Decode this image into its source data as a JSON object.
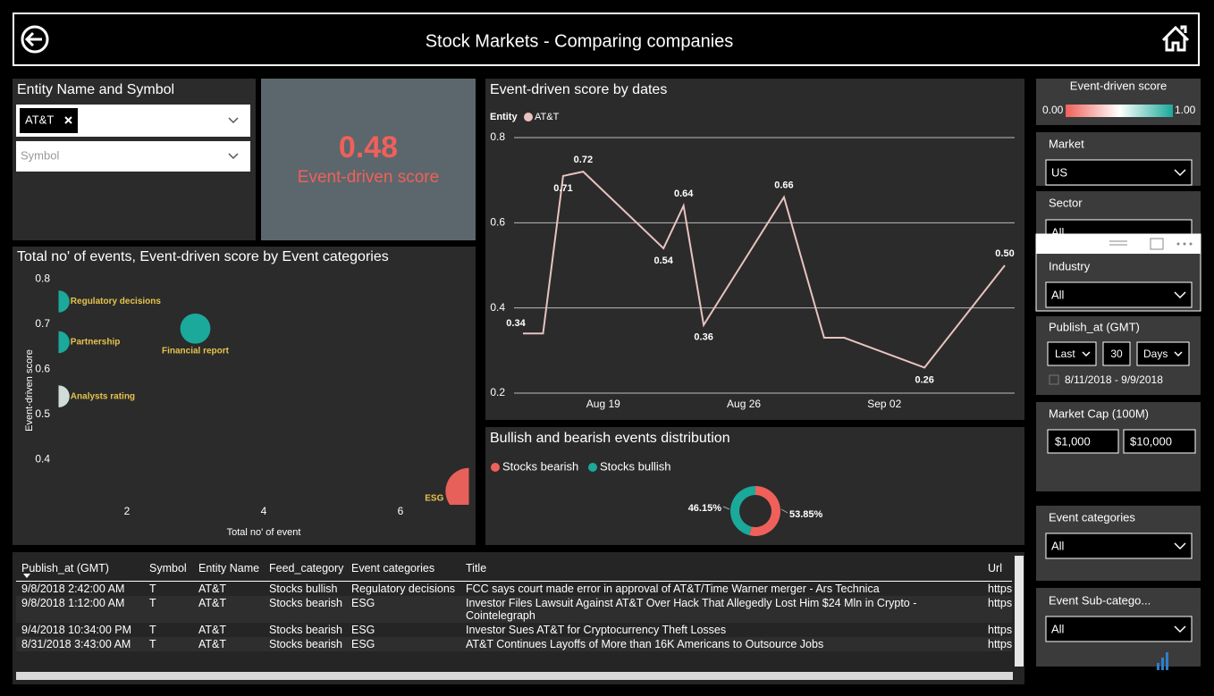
{
  "header": {
    "title": "Stock Markets - Comparing companies"
  },
  "entity_filter": {
    "title": "Entity Name and Symbol",
    "selected": "AT&T",
    "symbol_placeholder": "Symbol"
  },
  "score_card": {
    "value": "0.48",
    "label": "Event-driven score"
  },
  "chart_data": [
    {
      "type": "scatter",
      "title": "Total no' of events, Event-driven score by Event categories",
      "x_label": "Total no' of event",
      "y_label": "Event-driven score",
      "categories": [
        "Regulatory decisions",
        "Partnership",
        "Analysts rating",
        "Financial report",
        "ESG"
      ],
      "x": [
        1,
        1,
        1,
        3,
        7
      ],
      "values": [
        0.75,
        0.66,
        0.54,
        0.69,
        0.33
      ],
      "colors": [
        "#1aa99a",
        "#1aa99a",
        "#cfdcd8",
        "#1aa99a",
        "#e8605a"
      ],
      "xlim": [
        1,
        7
      ],
      "xticks": [
        2,
        4,
        6
      ],
      "ylim": [
        0.3,
        0.82
      ],
      "yticks": [
        0.4,
        0.5,
        0.6,
        0.7,
        0.8
      ]
    },
    {
      "type": "line",
      "title": "Event-driven score by dates",
      "legend_title": "Entity",
      "x": [
        "Aug 15",
        "Aug 16",
        "Aug 17",
        "Aug 18",
        "Aug 22",
        "Aug 23",
        "Aug 24",
        "Aug 28",
        "Aug 30",
        "Aug 31",
        "Sep 04",
        "Sep 08"
      ],
      "series": [
        {
          "name": "AT&T",
          "color": "#e8c3bf",
          "values": [
            0.34,
            0.34,
            0.71,
            0.72,
            0.54,
            0.64,
            0.36,
            0.66,
            0.33,
            0.33,
            0.26,
            0.5
          ],
          "value_labels": [
            "0.34",
            null,
            "0.71",
            "0.72",
            "0.54",
            "0.64",
            "0.36",
            "0.66",
            null,
            null,
            "0.26",
            "0.50"
          ]
        }
      ],
      "xlim": [
        "Aug 15",
        "Sep 08"
      ],
      "xticks": [
        "Aug 19",
        "Aug 26",
        "Sep 02"
      ],
      "ylim": [
        0.2,
        0.8
      ],
      "yticks": [
        0.2,
        0.4,
        0.6,
        0.8
      ],
      "grid": true
    },
    {
      "type": "pie",
      "title": "Bullish and bearish events distribution",
      "categories": [
        "Stocks bearish",
        "Stocks bullish"
      ],
      "values": [
        53.85,
        46.15
      ],
      "value_labels": [
        "53.85%",
        "46.15%"
      ],
      "colors": [
        "#f0605a",
        "#1aa99a"
      ]
    }
  ],
  "table": {
    "columns": [
      "Publish_at (GMT)",
      "Symbol",
      "Entity Name",
      "Feed_category",
      "Event categories",
      "Title",
      "Url"
    ],
    "rows": [
      [
        "9/8/2018 2:42:00 AM",
        "T",
        "AT&T",
        "Stocks bullish",
        "Regulatory decisions",
        "FCC says court made error in approval of AT&T/Time Warner merger - Ars Technica",
        "https"
      ],
      [
        "9/8/2018 1:12:00 AM",
        "T",
        "AT&T",
        "Stocks bearish",
        "ESG",
        "Investor Files Lawsuit Against AT&T Over Hack That Allegedly Lost Him $24 Mln in Crypto - Cointelegraph",
        "https"
      ],
      [
        "9/4/2018 10:34:00 PM",
        "T",
        "AT&T",
        "Stocks bearish",
        "ESG",
        "Investor Sues AT&T for Cryptocurrency Theft Losses",
        "https"
      ],
      [
        "8/31/2018 3:43:00 AM",
        "T",
        "AT&T",
        "Stocks bearish",
        "ESG",
        "AT&T Continues Layoffs of More than 16K Americans to Outsource Jobs",
        "https"
      ]
    ]
  },
  "sidebar": {
    "score_legend": {
      "title": "Event-driven score",
      "min": "0.00",
      "max": "1.00"
    },
    "market": {
      "label": "Market",
      "value": "US"
    },
    "sector": {
      "label": "Sector",
      "value": "All"
    },
    "industry": {
      "label": "Industry",
      "value": "All"
    },
    "publish_at": {
      "label": "Publish_at (GMT)",
      "mode": "Last",
      "count": "30",
      "unit": "Days",
      "range": "8/11/2018 - 9/9/2018"
    },
    "market_cap": {
      "label": "Market Cap (100M)",
      "min": "$1,000",
      "max": "$10,000"
    },
    "event_categories": {
      "label": "Event categories",
      "value": "All"
    },
    "event_subcategories": {
      "label": "Event Sub-catego...",
      "value": "All"
    }
  }
}
